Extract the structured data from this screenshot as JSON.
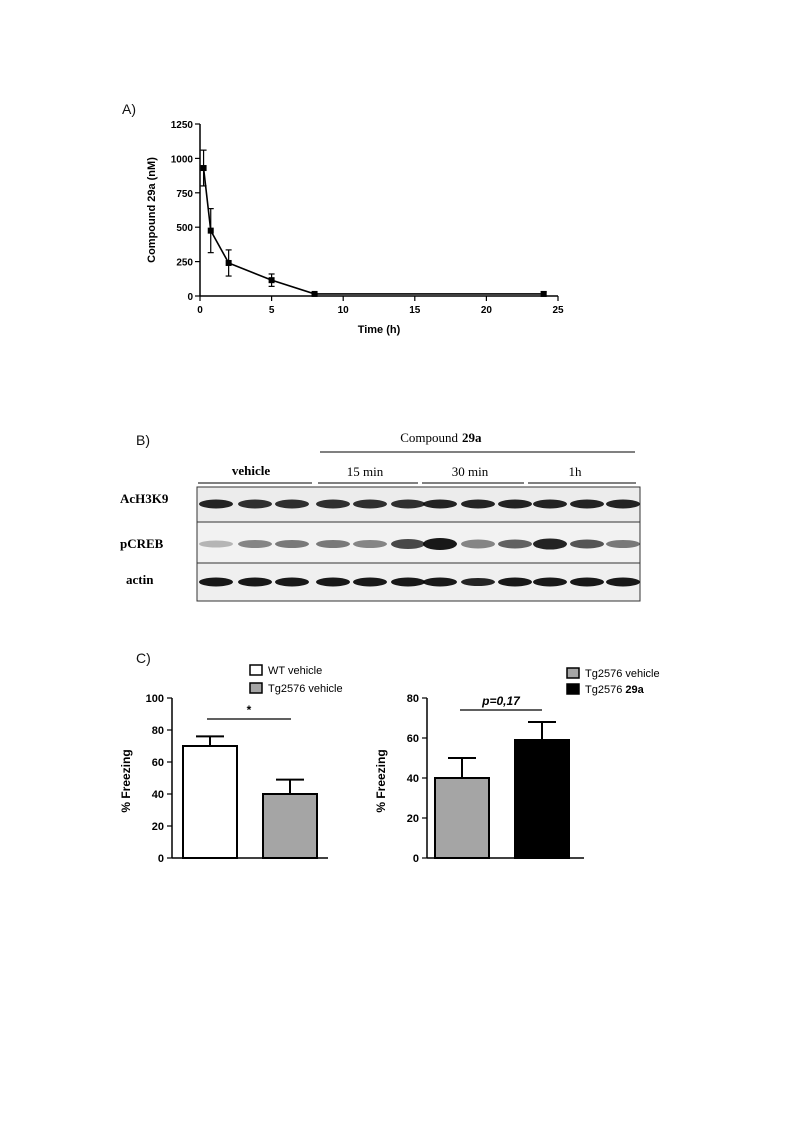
{
  "panels": {
    "a": "A)",
    "b": "B)",
    "c": "C)"
  },
  "chart_data": [
    {
      "type": "line",
      "ylabel": "Compound 29a (nM)",
      "xlabel": "Time (h)",
      "xlim": [
        0,
        25
      ],
      "ylim": [
        0,
        1250
      ],
      "xticks": [
        "0",
        "5",
        "10",
        "15",
        "20",
        "25"
      ],
      "yticks": [
        "0",
        "250",
        "500",
        "750",
        "1000",
        "1250"
      ],
      "grid": false,
      "x": [
        0.25,
        0.75,
        2,
        5,
        8,
        24
      ],
      "y": [
        930,
        475,
        240,
        115,
        15,
        15
      ],
      "err": [
        130,
        160,
        95,
        45,
        5,
        15
      ]
    },
    {
      "type": "bar",
      "ylabel": "% Freezing",
      "ylim": [
        0,
        100
      ],
      "yticks": [
        "0",
        "20",
        "40",
        "60",
        "80",
        "100"
      ],
      "categories": [
        "WT vehicle",
        "Tg2576 vehicle"
      ],
      "values": [
        70,
        40
      ],
      "err": [
        6,
        9
      ],
      "colors": [
        "#ffffff",
        "#a5a5a5"
      ],
      "legend": [
        "WT vehicle",
        "Tg2576 vehicle"
      ],
      "annotation": "*"
    },
    {
      "type": "bar",
      "ylabel": "% Freezing",
      "ylim": [
        0,
        80
      ],
      "yticks": [
        "0",
        "20",
        "40",
        "60",
        "80"
      ],
      "categories": [
        "Tg2576 vehicle",
        "Tg2576 29a"
      ],
      "values": [
        40,
        59
      ],
      "err": [
        10,
        9
      ],
      "colors": [
        "#a5a5a5",
        "#000000"
      ],
      "legend": [
        "Tg2576 vehicle",
        "Tg2576 29a"
      ],
      "legend_bold": [
        "",
        "29a"
      ],
      "annotation": "p=0,17"
    }
  ],
  "blot": {
    "treatment_header": "Compound",
    "treatment_header_bold": "29a",
    "groups": [
      "vehicle",
      "15 min",
      "30 min",
      "1h"
    ],
    "rows": [
      "AcH3K9",
      "pCREB",
      "actin"
    ]
  }
}
